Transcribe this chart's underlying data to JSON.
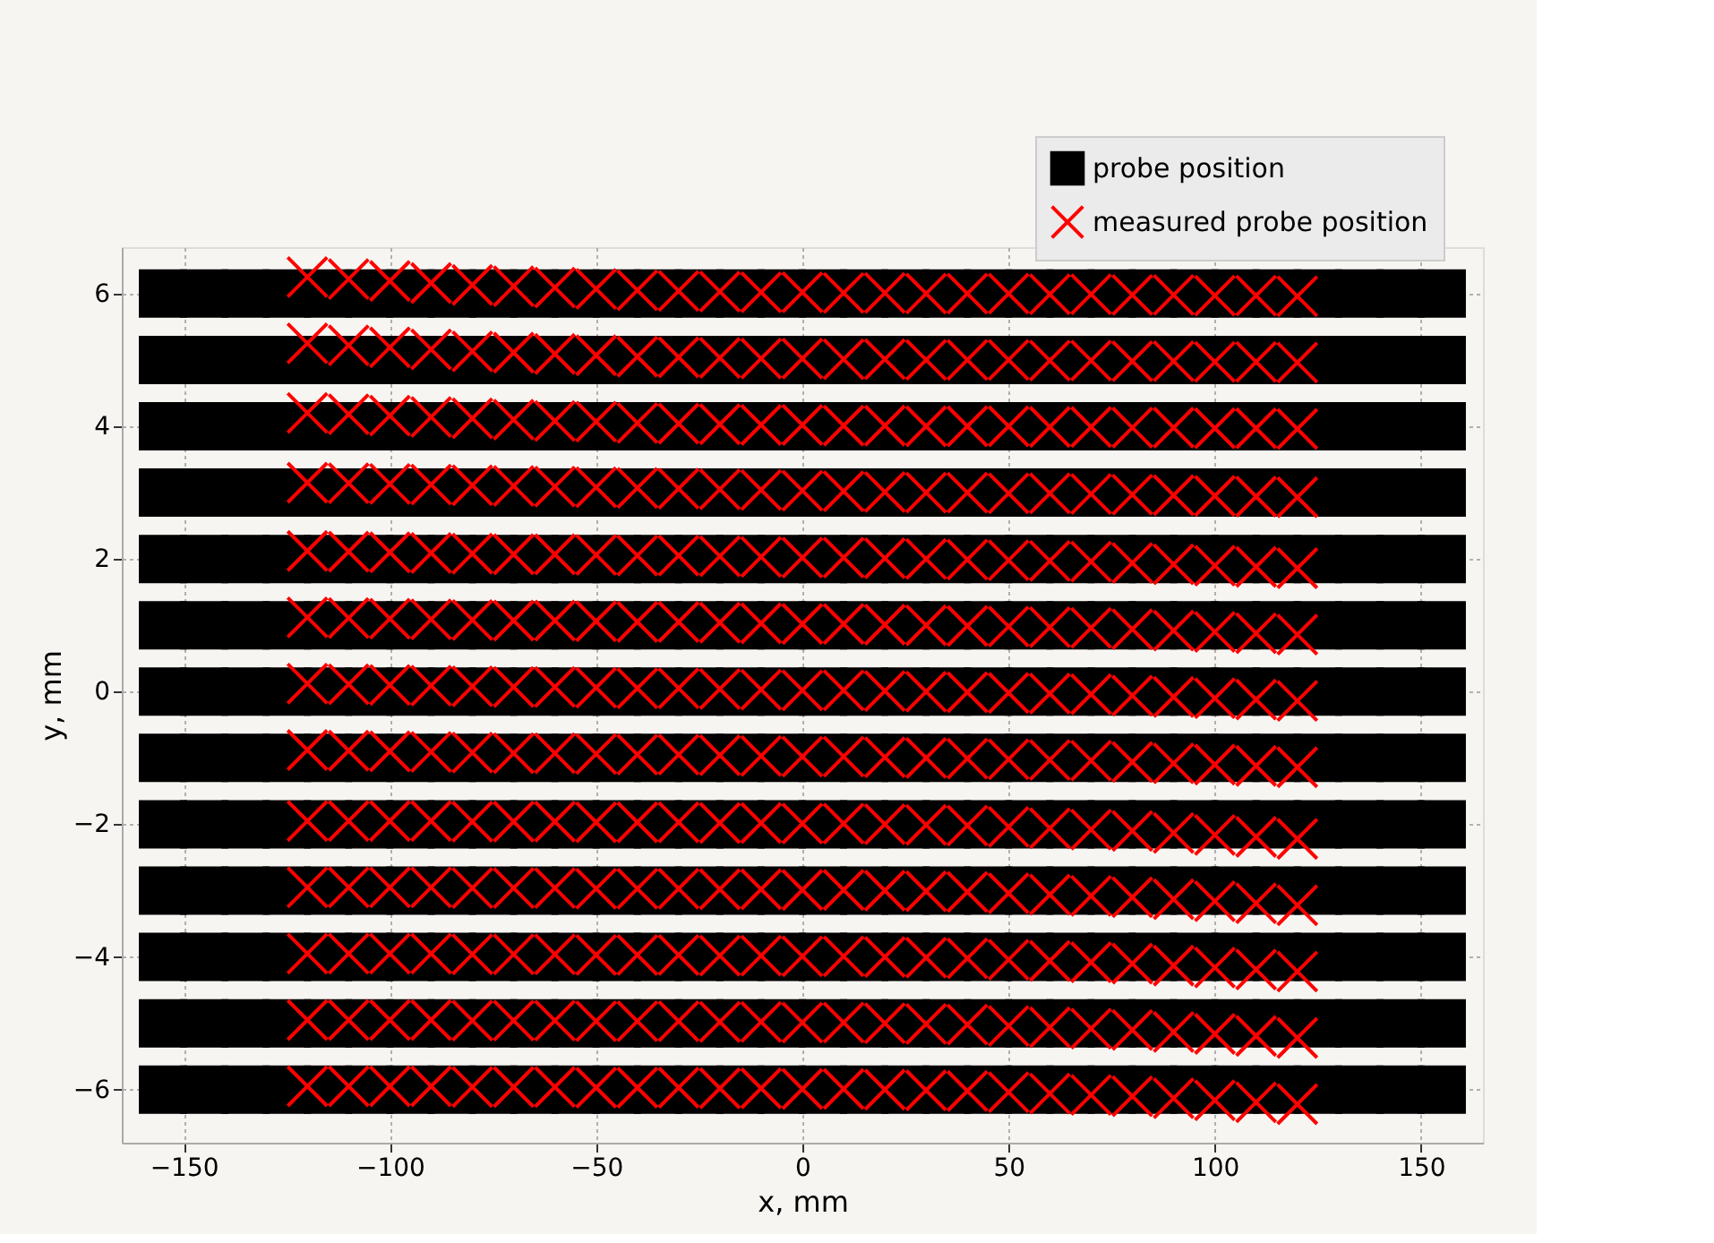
{
  "chart_data": {
    "type": "scatter",
    "xlabel": "x, mm",
    "ylabel": "y, mm",
    "xlim": [
      -165,
      165
    ],
    "ylim": [
      -6.8,
      6.7
    ],
    "xticks": [
      -150,
      -100,
      -50,
      0,
      50,
      100,
      150
    ],
    "yticks": [
      -6,
      -4,
      -2,
      0,
      2,
      4,
      6
    ],
    "grid": true,
    "legend": "top right",
    "x": [
      -155,
      -145,
      -135,
      -125,
      -115,
      -105,
      -95,
      -85,
      -75,
      -65,
      -55,
      -45,
      -35,
      -25,
      -15,
      -5,
      5,
      15,
      25,
      35,
      45,
      55,
      65,
      75,
      85,
      95,
      105,
      115,
      125,
      135,
      145,
      155
    ],
    "series": [
      {
        "name": "probe position",
        "color": "#000000",
        "marker": "square",
        "values": [
          6,
          6,
          6,
          6,
          6,
          6,
          6,
          6,
          6,
          6,
          6,
          6,
          6,
          6,
          6,
          6,
          6,
          6,
          6,
          6,
          6,
          6,
          6,
          6,
          6,
          6,
          6,
          6,
          6,
          6,
          6,
          6
        ]
      },
      {
        "color": "#000000",
        "marker": "square",
        "values": [
          5,
          5,
          5,
          5,
          5,
          5,
          5,
          5,
          5,
          5,
          5,
          5,
          5,
          5,
          5,
          5,
          5,
          5,
          5,
          5,
          5,
          5,
          5,
          5,
          5,
          5,
          5,
          5,
          5,
          5,
          5,
          5
        ]
      },
      {
        "color": "#000000",
        "marker": "square",
        "values": [
          4,
          4,
          4,
          4,
          4,
          4,
          4,
          4,
          4,
          4,
          4,
          4,
          4,
          4,
          4,
          4,
          4,
          4,
          4,
          4,
          4,
          4,
          4,
          4,
          4,
          4,
          4,
          4,
          4,
          4,
          4,
          4
        ]
      },
      {
        "color": "#000000",
        "marker": "square",
        "values": [
          3,
          3,
          3,
          3,
          3,
          3,
          3,
          3,
          3,
          3,
          3,
          3,
          3,
          3,
          3,
          3,
          3,
          3,
          3,
          3,
          3,
          3,
          3,
          3,
          3,
          3,
          3,
          3,
          3,
          3,
          3,
          3
        ]
      },
      {
        "color": "#000000",
        "marker": "square",
        "values": [
          2,
          2,
          2,
          2,
          2,
          2,
          2,
          2,
          2,
          2,
          2,
          2,
          2,
          2,
          2,
          2,
          2,
          2,
          2,
          2,
          2,
          2,
          2,
          2,
          2,
          2,
          2,
          2,
          2,
          2,
          2,
          2
        ]
      },
      {
        "color": "#000000",
        "marker": "square",
        "values": [
          1,
          1,
          1,
          1,
          1,
          1,
          1,
          1,
          1,
          1,
          1,
          1,
          1,
          1,
          1,
          1,
          1,
          1,
          1,
          1,
          1,
          1,
          1,
          1,
          1,
          1,
          1,
          1,
          1,
          1,
          1,
          1
        ]
      },
      {
        "color": "#000000",
        "marker": "square",
        "values": [
          0,
          0,
          0,
          0,
          0,
          0,
          0,
          0,
          0,
          0,
          0,
          0,
          0,
          0,
          0,
          0,
          0,
          0,
          0,
          0,
          0,
          0,
          0,
          0,
          0,
          0,
          0,
          0,
          0,
          0,
          0,
          0
        ]
      },
      {
        "color": "#000000",
        "marker": "square",
        "values": [
          -1,
          -1,
          -1,
          -1,
          -1,
          -1,
          -1,
          -1,
          -1,
          -1,
          -1,
          -1,
          -1,
          -1,
          -1,
          -1,
          -1,
          -1,
          -1,
          -1,
          -1,
          -1,
          -1,
          -1,
          -1,
          -1,
          -1,
          -1,
          -1,
          -1,
          -1,
          -1
        ]
      },
      {
        "color": "#000000",
        "marker": "square",
        "values": [
          -2,
          -2,
          -2,
          -2,
          -2,
          -2,
          -2,
          -2,
          -2,
          -2,
          -2,
          -2,
          -2,
          -2,
          -2,
          -2,
          -2,
          -2,
          -2,
          -2,
          -2,
          -2,
          -2,
          -2,
          -2,
          -2,
          -2,
          -2,
          -2,
          -2,
          -2,
          -2
        ]
      },
      {
        "color": "#000000",
        "marker": "square",
        "values": [
          -3,
          -3,
          -3,
          -3,
          -3,
          -3,
          -3,
          -3,
          -3,
          -3,
          -3,
          -3,
          -3,
          -3,
          -3,
          -3,
          -3,
          -3,
          -3,
          -3,
          -3,
          -3,
          -3,
          -3,
          -3,
          -3,
          -3,
          -3,
          -3,
          -3,
          -3,
          -3
        ]
      },
      {
        "color": "#000000",
        "marker": "square",
        "values": [
          -4,
          -4,
          -4,
          -4,
          -4,
          -4,
          -4,
          -4,
          -4,
          -4,
          -4,
          -4,
          -4,
          -4,
          -4,
          -4,
          -4,
          -4,
          -4,
          -4,
          -4,
          -4,
          -4,
          -4,
          -4,
          -4,
          -4,
          -4,
          -4,
          -4,
          -4,
          -4
        ]
      },
      {
        "color": "#000000",
        "marker": "square",
        "values": [
          -5,
          -5,
          -5,
          -5,
          -5,
          -5,
          -5,
          -5,
          -5,
          -5,
          -5,
          -5,
          -5,
          -5,
          -5,
          -5,
          -5,
          -5,
          -5,
          -5,
          -5,
          -5,
          -5,
          -5,
          -5,
          -5,
          -5,
          -5,
          -5,
          -5,
          -5,
          -5
        ]
      },
      {
        "color": "#000000",
        "marker": "square",
        "values": [
          -6,
          -6,
          -6,
          -6,
          -6,
          -6,
          -6,
          -6,
          -6,
          -6,
          -6,
          -6,
          -6,
          -6,
          -6,
          -6,
          -6,
          -6,
          -6,
          -6,
          -6,
          -6,
          -6,
          -6,
          -6,
          -6,
          -6,
          -6,
          -6,
          -6,
          -6,
          -6
        ]
      },
      {
        "name": "measured probe position",
        "color": "#ff0000",
        "marker": "cross",
        "x": [
          -120,
          -110,
          -100,
          -90,
          -80,
          -70,
          -60,
          -50,
          -40,
          -30,
          -20,
          -10,
          0,
          10,
          20,
          30,
          40,
          50,
          60,
          70,
          80,
          90,
          100,
          110,
          120
        ],
        "values": [
          6.25,
          6.22,
          6.19,
          6.16,
          6.13,
          6.11,
          6.09,
          6.07,
          6.05,
          6.04,
          6.03,
          6.02,
          6.02,
          6.01,
          6.01,
          6,
          6,
          6,
          5.99,
          5.99,
          5.98,
          5.98,
          5.97,
          5.97,
          5.96
        ]
      },
      {
        "color": "#ff0000",
        "marker": "cross",
        "x": [
          -120,
          -110,
          -100,
          -90,
          -80,
          -70,
          -60,
          -50,
          -40,
          -30,
          -20,
          -10,
          0,
          10,
          20,
          30,
          40,
          50,
          60,
          70,
          80,
          90,
          100,
          110,
          120
        ],
        "values": [
          5.25,
          5.22,
          5.19,
          5.16,
          5.13,
          5.11,
          5.09,
          5.07,
          5.05,
          5.04,
          5.03,
          5.02,
          5.02,
          5.01,
          5.01,
          5,
          5,
          5,
          4.99,
          4.99,
          4.98,
          4.98,
          4.97,
          4.97,
          4.96
        ]
      },
      {
        "color": "#ff0000",
        "marker": "cross",
        "x": [
          -120,
          -110,
          -100,
          -90,
          -80,
          -70,
          -60,
          -50,
          -40,
          -30,
          -20,
          -10,
          0,
          10,
          20,
          30,
          40,
          50,
          60,
          70,
          80,
          90,
          100,
          110,
          120
        ],
        "values": [
          4.2,
          4.18,
          4.16,
          4.14,
          4.12,
          4.1,
          4.08,
          4.07,
          4.05,
          4.04,
          4.03,
          4.02,
          4.02,
          4.01,
          4.01,
          4,
          4,
          4,
          3.99,
          3.99,
          3.98,
          3.98,
          3.97,
          3.97,
          3.96
        ]
      },
      {
        "color": "#ff0000",
        "marker": "cross",
        "x": [
          -120,
          -110,
          -100,
          -90,
          -80,
          -70,
          -60,
          -50,
          -40,
          -30,
          -20,
          -10,
          0,
          10,
          20,
          30,
          40,
          50,
          60,
          70,
          80,
          90,
          100,
          110,
          120
        ],
        "values": [
          3.15,
          3.14,
          3.13,
          3.12,
          3.11,
          3.1,
          3.09,
          3.08,
          3.07,
          3.06,
          3.05,
          3.04,
          3.03,
          3.02,
          3.01,
          3,
          3,
          2.99,
          2.99,
          2.98,
          2.97,
          2.96,
          2.95,
          2.94,
          2.93
        ]
      },
      {
        "color": "#ff0000",
        "marker": "cross",
        "x": [
          -120,
          -110,
          -100,
          -90,
          -80,
          -70,
          -60,
          -50,
          -40,
          -30,
          -20,
          -10,
          0,
          10,
          20,
          30,
          40,
          50,
          60,
          70,
          80,
          90,
          100,
          110,
          120
        ],
        "values": [
          2.12,
          2.11,
          2.1,
          2.09,
          2.08,
          2.07,
          2.07,
          2.06,
          2.05,
          2.05,
          2.04,
          2.03,
          2.02,
          2.02,
          2.01,
          2,
          1.99,
          1.98,
          1.97,
          1.96,
          1.94,
          1.92,
          1.9,
          1.88,
          1.86
        ]
      },
      {
        "color": "#ff0000",
        "marker": "cross",
        "x": [
          -120,
          -110,
          -100,
          -90,
          -80,
          -70,
          -60,
          -50,
          -40,
          -30,
          -20,
          -10,
          0,
          10,
          20,
          30,
          40,
          50,
          60,
          70,
          80,
          90,
          100,
          110,
          120
        ],
        "values": [
          1.12,
          1.11,
          1.1,
          1.09,
          1.08,
          1.07,
          1.07,
          1.06,
          1.05,
          1.05,
          1.04,
          1.03,
          1.02,
          1.02,
          1.01,
          1,
          0.99,
          0.98,
          0.97,
          0.96,
          0.94,
          0.92,
          0.9,
          0.88,
          0.86
        ]
      },
      {
        "color": "#ff0000",
        "marker": "cross",
        "x": [
          -120,
          -110,
          -100,
          -90,
          -80,
          -70,
          -60,
          -50,
          -40,
          -30,
          -20,
          -10,
          0,
          10,
          20,
          30,
          40,
          50,
          60,
          70,
          80,
          90,
          100,
          110,
          120
        ],
        "values": [
          0.12,
          0.11,
          0.1,
          0.09,
          0.08,
          0.07,
          0.07,
          0.06,
          0.05,
          0.05,
          0.04,
          0.03,
          0.02,
          0.02,
          0.01,
          0,
          -0.01,
          -0.02,
          -0.03,
          -0.04,
          -0.06,
          -0.08,
          -0.1,
          -0.12,
          -0.14
        ]
      },
      {
        "color": "#ff0000",
        "marker": "cross",
        "x": [
          -120,
          -110,
          -100,
          -90,
          -80,
          -70,
          -60,
          -50,
          -40,
          -30,
          -20,
          -10,
          0,
          10,
          20,
          30,
          40,
          50,
          60,
          70,
          80,
          90,
          100,
          110,
          120
        ],
        "values": [
          -0.88,
          -0.89,
          -0.9,
          -0.91,
          -0.92,
          -0.93,
          -0.93,
          -0.94,
          -0.95,
          -0.95,
          -0.96,
          -0.97,
          -0.98,
          -0.98,
          -0.99,
          -1,
          -1.01,
          -1.02,
          -1.03,
          -1.04,
          -1.06,
          -1.08,
          -1.1,
          -1.12,
          -1.14
        ]
      },
      {
        "color": "#ff0000",
        "marker": "cross",
        "x": [
          -120,
          -110,
          -100,
          -90,
          -80,
          -70,
          -60,
          -50,
          -40,
          -30,
          -20,
          -10,
          0,
          10,
          20,
          30,
          40,
          50,
          60,
          70,
          80,
          90,
          100,
          110,
          120
        ],
        "values": [
          -1.95,
          -1.95,
          -1.95,
          -1.95,
          -1.96,
          -1.96,
          -1.96,
          -1.97,
          -1.97,
          -1.97,
          -1.98,
          -1.98,
          -1.99,
          -1.99,
          -2,
          -2.01,
          -2.02,
          -2.04,
          -2.06,
          -2.08,
          -2.1,
          -2.13,
          -2.16,
          -2.19,
          -2.22
        ]
      },
      {
        "color": "#ff0000",
        "marker": "cross",
        "x": [
          -120,
          -110,
          -100,
          -90,
          -80,
          -70,
          -60,
          -50,
          -40,
          -30,
          -20,
          -10,
          0,
          10,
          20,
          30,
          40,
          50,
          60,
          70,
          80,
          90,
          100,
          110,
          120
        ],
        "values": [
          -2.95,
          -2.95,
          -2.95,
          -2.95,
          -2.96,
          -2.96,
          -2.96,
          -2.97,
          -2.97,
          -2.97,
          -2.98,
          -2.98,
          -2.99,
          -2.99,
          -3,
          -3.01,
          -3.02,
          -3.04,
          -3.06,
          -3.08,
          -3.1,
          -3.13,
          -3.16,
          -3.19,
          -3.22
        ]
      },
      {
        "color": "#ff0000",
        "marker": "cross",
        "x": [
          -120,
          -110,
          -100,
          -90,
          -80,
          -70,
          -60,
          -50,
          -40,
          -30,
          -20,
          -10,
          0,
          10,
          20,
          30,
          40,
          50,
          60,
          70,
          80,
          90,
          100,
          110,
          120
        ],
        "values": [
          -3.95,
          -3.95,
          -3.95,
          -3.95,
          -3.96,
          -3.96,
          -3.96,
          -3.97,
          -3.97,
          -3.97,
          -3.98,
          -3.98,
          -3.99,
          -3.99,
          -4,
          -4.01,
          -4.02,
          -4.04,
          -4.06,
          -4.08,
          -4.1,
          -4.13,
          -4.16,
          -4.19,
          -4.22
        ]
      },
      {
        "color": "#ff0000",
        "marker": "cross",
        "x": [
          -120,
          -110,
          -100,
          -90,
          -80,
          -70,
          -60,
          -50,
          -40,
          -30,
          -20,
          -10,
          0,
          10,
          20,
          30,
          40,
          50,
          60,
          70,
          80,
          90,
          100,
          110,
          120
        ],
        "values": [
          -4.95,
          -4.95,
          -4.95,
          -4.95,
          -4.96,
          -4.96,
          -4.96,
          -4.97,
          -4.97,
          -4.97,
          -4.98,
          -4.98,
          -4.99,
          -4.99,
          -5,
          -5.01,
          -5.02,
          -5.04,
          -5.06,
          -5.08,
          -5.1,
          -5.13,
          -5.16,
          -5.19,
          -5.22
        ]
      },
      {
        "color": "#ff0000",
        "marker": "cross",
        "x": [
          -120,
          -110,
          -100,
          -90,
          -80,
          -70,
          -60,
          -50,
          -40,
          -30,
          -20,
          -10,
          0,
          10,
          20,
          30,
          40,
          50,
          60,
          70,
          80,
          90,
          100,
          110,
          120
        ],
        "values": [
          -5.95,
          -5.95,
          -5.95,
          -5.95,
          -5.96,
          -5.96,
          -5.96,
          -5.97,
          -5.97,
          -5.97,
          -5.98,
          -5.98,
          -5.99,
          -5.99,
          -6,
          -6.01,
          -6.02,
          -6.04,
          -6.06,
          -6.08,
          -6.1,
          -6.13,
          -6.16,
          -6.19,
          -6.22
        ]
      }
    ]
  }
}
